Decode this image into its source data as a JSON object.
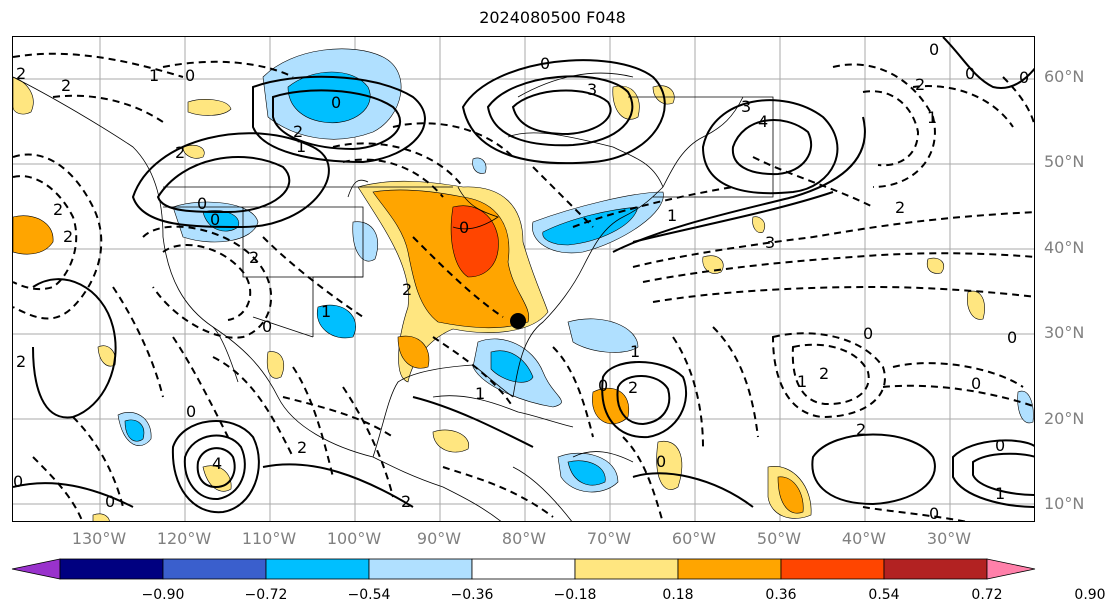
{
  "title": "2024080500 F048",
  "lat_labels": [
    "60°N",
    "50°N",
    "40°N",
    "30°N",
    "20°N",
    "10°N"
  ],
  "lon_labels": [
    "130°W",
    "120°W",
    "110°W",
    "100°W",
    "90°W",
    "80°W",
    "70°W",
    "60°W",
    "50°W",
    "40°W",
    "30°W"
  ],
  "colorbar": {
    "ticks": [
      "−0.90",
      "−0.72",
      "−0.54",
      "−0.36",
      "−0.18",
      "0.18",
      "0.36",
      "0.54",
      "0.72",
      "0.90"
    ],
    "colors": [
      "#9932cc",
      "#000080",
      "#3a5fcd",
      "#00bfff",
      "#b0e0ff",
      "#ffffff",
      "#ffe680",
      "#ffa500",
      "#ff4500",
      "#b22222",
      "#ff80aa"
    ]
  },
  "contour_labels": [
    "2",
    "2",
    "1",
    "0",
    "2",
    "0",
    "0",
    "2",
    "1",
    "0",
    "0",
    "3",
    "3",
    "4",
    "0",
    "0",
    "2",
    "1",
    "0",
    "2",
    "3",
    "2",
    "2",
    "2",
    "0",
    "1",
    "2",
    "0",
    "1",
    "2",
    "4",
    "0",
    "2",
    "0",
    "0",
    "1",
    "0",
    "2",
    "1",
    "0",
    "1",
    "0",
    "0",
    "2",
    "0",
    "2",
    "0",
    "1",
    "0",
    "2"
  ],
  "map_symbols": [
    "storm-center-marker"
  ]
}
